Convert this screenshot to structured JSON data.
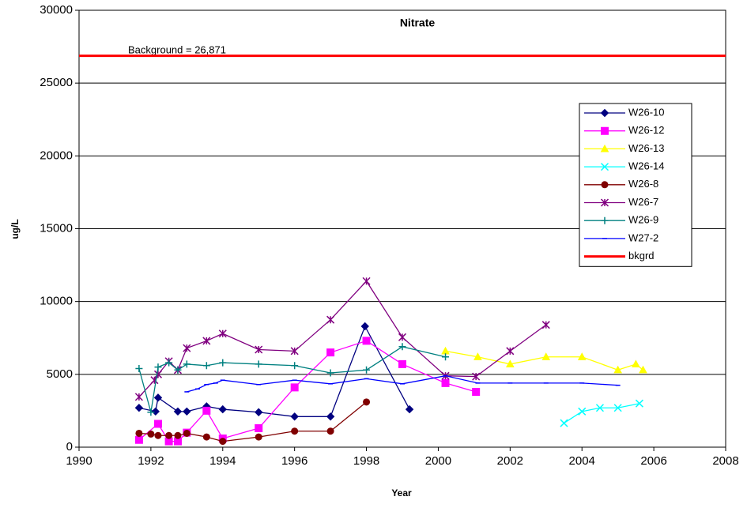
{
  "chart_data": {
    "type": "line",
    "title": "Nitrate",
    "x_label": "Year",
    "y_label": "ug/L",
    "annotation": "Background = 26,871",
    "xlim": [
      1990,
      2008
    ],
    "xticks": [
      1990,
      1992,
      1994,
      1996,
      1998,
      2000,
      2002,
      2004,
      2006,
      2008
    ],
    "ylim": [
      0,
      30000
    ],
    "yticks": [
      0,
      5000,
      10000,
      15000,
      20000,
      25000,
      30000
    ],
    "grid": true,
    "legend": "right",
    "series": [
      {
        "name": "W26-10",
        "color": "#000080",
        "marker": "diamond",
        "x": [
          1991.67,
          1992.13,
          1992.2,
          1992.75,
          1993.0,
          1993.55,
          1994.0,
          1995.0,
          1996.0,
          1997.0,
          1997.96,
          1999.2
        ],
        "values": [
          2700,
          2450,
          3400,
          2450,
          2450,
          2800,
          2600,
          2400,
          2100,
          2100,
          8300,
          2600
        ]
      },
      {
        "name": "W26-12",
        "color": "#ff00ff",
        "marker": "square",
        "x": [
          1991.67,
          1992.2,
          1992.5,
          1992.75,
          1993.0,
          1993.55,
          1994.0,
          1995.0,
          1996.0,
          1997.0,
          1998.0,
          1999.0,
          2000.2,
          2001.05
        ],
        "values": [
          500,
          1600,
          400,
          400,
          1000,
          2500,
          600,
          1300,
          4100,
          6500,
          7300,
          5700,
          4400,
          3800
        ]
      },
      {
        "name": "W26-13",
        "color": "#ffff00",
        "marker": "triangle",
        "x": [
          2000.2,
          2001.1,
          2002.0,
          2003.0,
          2004.0,
          2005.0,
          2005.5,
          2005.7
        ],
        "values": [
          6600,
          6200,
          5700,
          6200,
          6200,
          5300,
          5700,
          5300
        ]
      },
      {
        "name": "W26-14",
        "color": "#00ffff",
        "marker": "x",
        "x": [
          2003.5,
          2004.0,
          2004.5,
          2005.0,
          2005.6
        ],
        "values": [
          1650,
          2450,
          2700,
          2700,
          3000
        ]
      },
      {
        "name": "W26-8",
        "color": "#800000",
        "marker": "circle",
        "x": [
          1991.67,
          1992.0,
          1992.2,
          1992.5,
          1992.75,
          1993.0,
          1993.55,
          1994.0,
          1995.0,
          1996.0,
          1997.0,
          1998.0
        ],
        "values": [
          950,
          900,
          800,
          800,
          800,
          950,
          700,
          400,
          700,
          1100,
          1100,
          3100
        ]
      },
      {
        "name": "W26-7",
        "color": "#800080",
        "marker": "star",
        "x": [
          1991.67,
          1992.1,
          1992.2,
          1992.5,
          1992.75,
          1993.0,
          1993.55,
          1994.0,
          1995.0,
          1996.0,
          1997.0,
          1998.0,
          1999.0,
          2000.2,
          2001.05,
          2002.0,
          2003.0
        ],
        "values": [
          3450,
          4600,
          5000,
          5900,
          5300,
          6800,
          7300,
          7800,
          6700,
          6600,
          8750,
          11400,
          7550,
          4900,
          4850,
          6600,
          8400
        ]
      },
      {
        "name": "W26-9",
        "color": "#008080",
        "marker": "plus",
        "x": [
          1991.67,
          1992.0,
          1992.2,
          1992.5,
          1992.75,
          1993.0,
          1993.55,
          1994.0,
          1995.0,
          1996.0,
          1997.0,
          1998.0,
          1999.0,
          2000.2
        ],
        "values": [
          5400,
          2400,
          5500,
          5800,
          5300,
          5700,
          5600,
          5800,
          5700,
          5600,
          5100,
          5300,
          6900,
          6200
        ]
      },
      {
        "name": "W27-2",
        "color": "#0000ff",
        "marker": "dash",
        "x": [
          1993.0,
          1993.3,
          1993.55,
          1993.8,
          1994.0,
          1995.0,
          1996.0,
          1997.0,
          1998.0,
          1999.0,
          2000.2,
          2001.1,
          2002.0,
          2003.0,
          2004.0,
          2005.0
        ],
        "values": [
          3800,
          4000,
          4300,
          4400,
          4600,
          4300,
          4600,
          4350,
          4700,
          4350,
          4900,
          4400,
          4400,
          4400,
          4400,
          4250
        ]
      },
      {
        "name": "bkgrd",
        "color": "#ff0000",
        "marker": "none",
        "width": 3,
        "x": [
          1990,
          2008
        ],
        "values": [
          26871,
          26871
        ]
      }
    ]
  }
}
